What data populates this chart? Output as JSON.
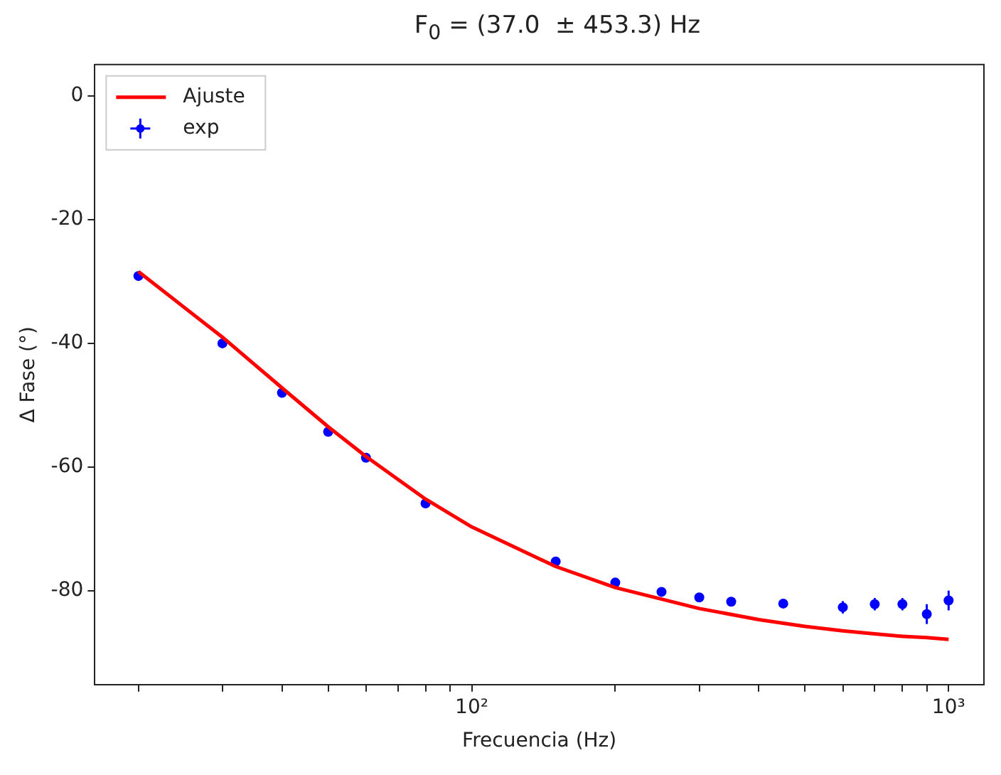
{
  "chart_data": {
    "type": "scatter",
    "title": "F$_{0}$ = (37.0  ± 453.3) Hz",
    "xlabel": "Frecuencia (Hz)",
    "ylabel": "Δ Fase (°)",
    "log": "x",
    "xlim": [
      16.2,
      1186
    ],
    "xticks": [
      {
        "value": 20,
        "label": null
      },
      {
        "value": 30,
        "label": null
      },
      {
        "value": 40,
        "label": null
      },
      {
        "value": 50,
        "label": null
      },
      {
        "value": 60,
        "label": null
      },
      {
        "value": 70,
        "label": null
      },
      {
        "value": 80,
        "label": null
      },
      {
        "value": 90,
        "label": null
      },
      {
        "value": 100,
        "label": "10²"
      },
      {
        "value": 200,
        "label": null
      },
      {
        "value": 300,
        "label": null
      },
      {
        "value": 400,
        "label": null
      },
      {
        "value": 500,
        "label": null
      },
      {
        "value": 600,
        "label": null
      },
      {
        "value": 700,
        "label": null
      },
      {
        "value": 800,
        "label": null
      },
      {
        "value": 900,
        "label": null
      },
      {
        "value": 1000,
        "label": "10³"
      }
    ],
    "ylim": [
      -95.2,
      5.1
    ],
    "yticks": [
      -80,
      -60,
      -40,
      -20,
      0
    ],
    "grid": false,
    "legend": "top left",
    "series": [
      {
        "name": "Ajuste",
        "type": "line",
        "color": "#ff0000",
        "marker": "none",
        "line_style": "solid",
        "x": [
          20,
          30,
          40,
          50,
          60,
          80,
          100,
          150,
          200,
          300,
          400,
          500,
          600,
          700,
          800,
          900,
          1000
        ],
        "values": [
          -28.4,
          -39.0,
          -47.2,
          -53.5,
          -58.3,
          -65.2,
          -69.7,
          -76.1,
          -79.5,
          -82.9,
          -84.7,
          -85.8,
          -86.5,
          -87.0,
          -87.4,
          -87.6,
          -87.9
        ]
      },
      {
        "name": "exp",
        "color": "#0000ff",
        "marker": "circle",
        "x": [
          20,
          30,
          40,
          50,
          60,
          80,
          150,
          200,
          250,
          300,
          350,
          450,
          600,
          700,
          800,
          900,
          1000
        ],
        "values": [
          -29.1,
          -40.0,
          -48.0,
          -54.3,
          -58.5,
          -65.9,
          -75.3,
          -78.7,
          -80.2,
          -81.1,
          -81.8,
          -82.1,
          -82.7,
          -82.2,
          -82.2,
          -83.8,
          -81.6
        ],
        "errors": [
          null,
          null,
          null,
          null,
          null,
          null,
          0.5,
          null,
          null,
          null,
          null,
          null,
          1.0,
          1.0,
          1.0,
          1.6,
          1.6
        ]
      }
    ]
  }
}
